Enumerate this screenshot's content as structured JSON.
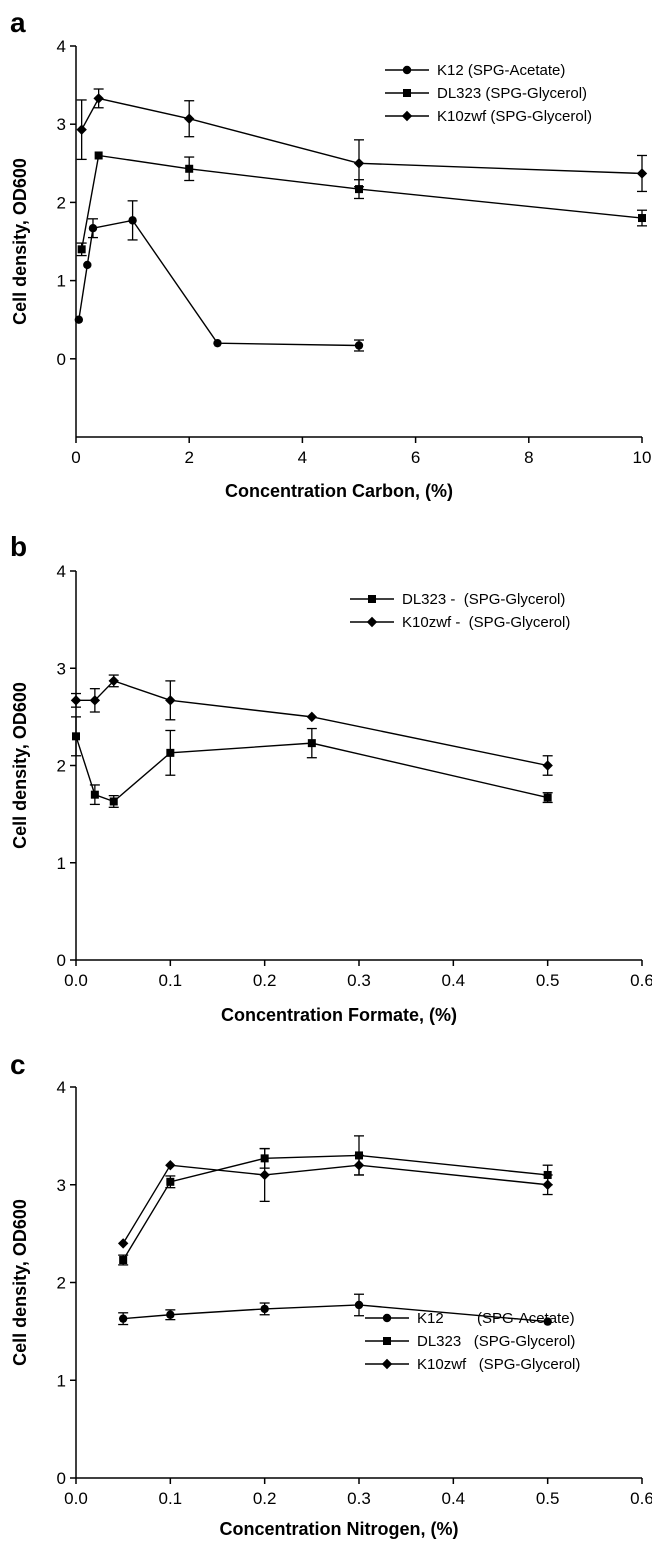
{
  "chart_data": [
    {
      "panel": "a",
      "type": "line",
      "xlabel": "Concentration Carbon, (%)",
      "ylabel": "Cell density, OD600",
      "xlim": [
        0,
        10
      ],
      "ylim": [
        -1,
        4
      ],
      "xticks": [
        0,
        2,
        4,
        6,
        8,
        10
      ],
      "yticks": [
        0,
        1,
        2,
        3,
        4
      ],
      "legend_position": "top-right",
      "series": [
        {
          "name": "K12 (SPG-Acetate)",
          "marker": "circle",
          "x": [
            0.05,
            0.2,
            0.3,
            1.0,
            2.5,
            5.0
          ],
          "y": [
            0.5,
            1.2,
            1.67,
            1.77,
            0.2,
            0.17
          ],
          "err": [
            0,
            0,
            0.12,
            0.25,
            0,
            0.07
          ]
        },
        {
          "name": "DL323 (SPG-Glycerol)",
          "marker": "square",
          "x": [
            0.1,
            0.4,
            2.0,
            5.0,
            10.0
          ],
          "y": [
            1.4,
            2.6,
            2.43,
            2.17,
            1.8
          ],
          "err": [
            0.08,
            0,
            0.15,
            0.12,
            0.1
          ]
        },
        {
          "name": "K10zwf (SPG-Glycerol)",
          "marker": "diamond",
          "x": [
            0.1,
            0.4,
            2.0,
            5.0,
            10.0
          ],
          "y": [
            2.93,
            3.33,
            3.07,
            2.5,
            2.37
          ],
          "err": [
            0.38,
            0.12,
            0.23,
            0.3,
            0.23
          ]
        }
      ]
    },
    {
      "panel": "b",
      "type": "line",
      "xlabel": "Concentration Formate, (%)",
      "ylabel": "Cell density, OD600",
      "xlim": [
        0,
        0.6
      ],
      "ylim": [
        0,
        4
      ],
      "xticks": [
        0.0,
        0.1,
        0.2,
        0.3,
        0.4,
        0.5,
        0.6
      ],
      "yticks": [
        0,
        1,
        2,
        3,
        4
      ],
      "legend_position": "top-right",
      "series": [
        {
          "name": "DL323 -  (SPG-Glycerol)",
          "marker": "square",
          "x": [
            0.0,
            0.02,
            0.04,
            0.1,
            0.25,
            0.5
          ],
          "y": [
            2.3,
            1.7,
            1.63,
            2.13,
            2.23,
            1.67
          ],
          "err": [
            0.2,
            0.1,
            0.06,
            0.23,
            0.15,
            0.05
          ]
        },
        {
          "name": "K10zwf -  (SPG-Glycerol)",
          "marker": "diamond",
          "x": [
            0.0,
            0.02,
            0.04,
            0.1,
            0.25,
            0.5
          ],
          "y": [
            2.67,
            2.67,
            2.87,
            2.67,
            2.5,
            2.0
          ],
          "err": [
            0.07,
            0.12,
            0.06,
            0.2,
            0,
            0.1
          ]
        }
      ]
    },
    {
      "panel": "c",
      "type": "line",
      "xlabel": "Concentration Nitrogen, (%)",
      "ylabel": "Cell density, OD600",
      "xlim": [
        0,
        0.6
      ],
      "ylim": [
        0,
        4
      ],
      "xticks": [
        0.0,
        0.1,
        0.2,
        0.3,
        0.4,
        0.5,
        0.6
      ],
      "yticks": [
        0,
        1,
        2,
        3,
        4
      ],
      "legend_position": "bottom-right",
      "series": [
        {
          "name": "K12        (SPG-Acetate)",
          "marker": "circle",
          "x": [
            0.05,
            0.1,
            0.2,
            0.3,
            0.5
          ],
          "y": [
            1.63,
            1.67,
            1.73,
            1.77,
            1.6
          ],
          "err": [
            0.06,
            0.05,
            0.06,
            0.11,
            0
          ]
        },
        {
          "name": "DL323   (SPG-Glycerol)",
          "marker": "square",
          "x": [
            0.05,
            0.1,
            0.2,
            0.3,
            0.5
          ],
          "y": [
            2.23,
            3.03,
            3.27,
            3.3,
            3.1
          ],
          "err": [
            0.05,
            0.06,
            0.1,
            0.2,
            0.1
          ]
        },
        {
          "name": "K10zwf   (SPG-Glycerol)",
          "marker": "diamond",
          "x": [
            0.05,
            0.1,
            0.2,
            0.3,
            0.5
          ],
          "y": [
            2.4,
            3.2,
            3.1,
            3.2,
            3.0
          ],
          "err": [
            0,
            0,
            0.27,
            0.1,
            0.1
          ]
        }
      ]
    }
  ]
}
